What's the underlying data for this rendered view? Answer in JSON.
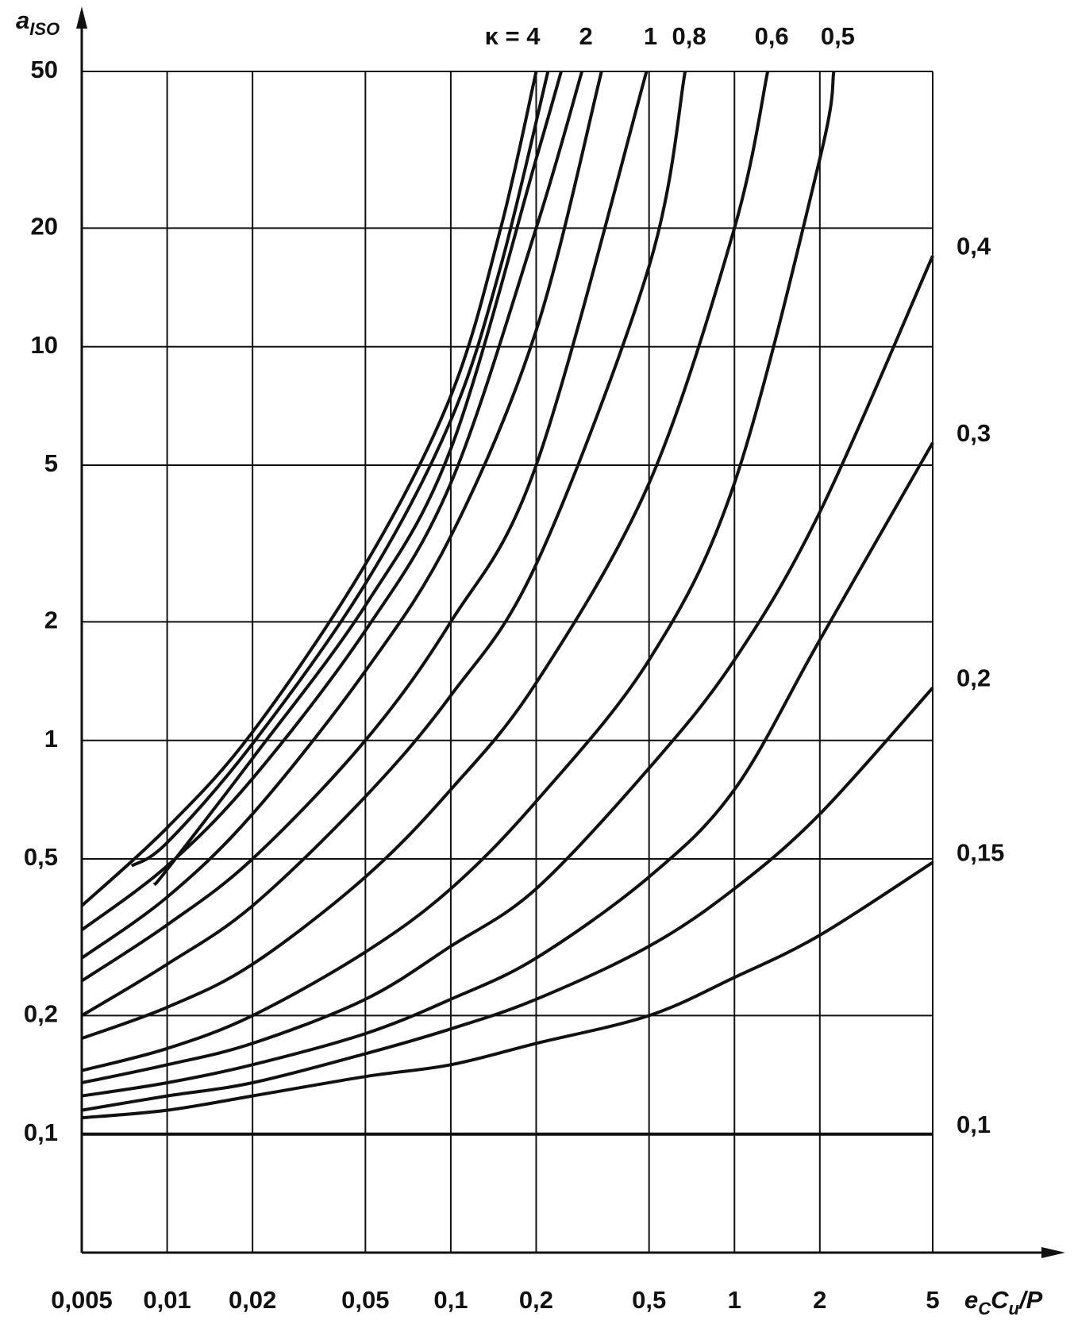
{
  "chart_data": {
    "type": "line",
    "xscale": "log",
    "yscale": "log",
    "grid": true,
    "color": "#111",
    "ylabel": "a",
    "ylabel_sub": "ISO",
    "xlabel_parts": [
      {
        "text": "e"
      },
      {
        "text": "C",
        "sub": true
      },
      {
        "text": "C"
      },
      {
        "text": "u",
        "sub": true
      },
      {
        "text": "/P"
      }
    ],
    "xlim": [
      0.005,
      5
    ],
    "ylim": [
      0.05,
      50
    ],
    "xticks": [
      {
        "value": 0.005,
        "label": "0,005"
      },
      {
        "value": 0.01,
        "label": "0,01"
      },
      {
        "value": 0.02,
        "label": "0,02"
      },
      {
        "value": 0.05,
        "label": "0,05"
      },
      {
        "value": 0.1,
        "label": "0,1"
      },
      {
        "value": 0.2,
        "label": "0,2"
      },
      {
        "value": 0.5,
        "label": "0,5"
      },
      1,
      2,
      5
    ],
    "yticks": [
      {
        "value": 0.1,
        "label": "0,1"
      },
      {
        "value": 0.2,
        "label": "0,2"
      },
      {
        "value": 0.5,
        "label": "0,5"
      },
      1,
      2,
      5,
      10,
      20,
      50
    ],
    "series": [
      {
        "name": "κ = 4",
        "x": [
          0.005,
          0.01,
          0.02,
          0.05,
          0.1,
          0.15,
          0.2
        ],
        "values": [
          0.38,
          0.6,
          1.05,
          2.8,
          7.5,
          20,
          50
        ]
      },
      {
        "x": [
          0.0075,
          0.01,
          0.02,
          0.05,
          0.1,
          0.15,
          0.22
        ],
        "values": [
          0.48,
          0.55,
          0.98,
          2.5,
          6.5,
          16,
          50
        ]
      },
      {
        "x": [
          0.009,
          0.01,
          0.02,
          0.05,
          0.1,
          0.2,
          0.245
        ],
        "values": [
          0.43,
          0.47,
          0.9,
          2.2,
          5.5,
          30,
          50
        ]
      },
      {
        "name": "2",
        "x": [
          0.005,
          0.01,
          0.02,
          0.05,
          0.1,
          0.2,
          0.29
        ],
        "values": [
          0.33,
          0.48,
          0.8,
          1.9,
          4.5,
          20,
          50
        ]
      },
      {
        "x": [
          0.005,
          0.01,
          0.02,
          0.05,
          0.1,
          0.2,
          0.34
        ],
        "values": [
          0.28,
          0.4,
          0.65,
          1.5,
          3.3,
          11,
          50
        ]
      },
      {
        "name": "1",
        "x": [
          0.005,
          0.01,
          0.02,
          0.05,
          0.1,
          0.2,
          0.49
        ],
        "values": [
          0.245,
          0.34,
          0.5,
          1.0,
          2.0,
          5.0,
          50
        ]
      },
      {
        "name": "0,8",
        "x": [
          0.005,
          0.01,
          0.02,
          0.05,
          0.1,
          0.2,
          0.5,
          0.67
        ],
        "values": [
          0.2,
          0.27,
          0.38,
          0.72,
          1.3,
          2.8,
          16,
          50
        ]
      },
      {
        "name": "0,6",
        "x": [
          0.005,
          0.01,
          0.02,
          0.05,
          0.1,
          0.2,
          0.5,
          1,
          1.31
        ],
        "values": [
          0.175,
          0.21,
          0.27,
          0.45,
          0.75,
          1.4,
          4.5,
          20,
          50
        ]
      },
      {
        "name": "0,5",
        "x": [
          0.005,
          0.01,
          0.02,
          0.05,
          0.1,
          0.2,
          0.5,
          1,
          2,
          2.24
        ],
        "values": [
          0.145,
          0.165,
          0.2,
          0.29,
          0.42,
          0.7,
          1.6,
          4.5,
          30,
          50
        ]
      },
      {
        "name": "0,4",
        "x": [
          0.005,
          0.01,
          0.02,
          0.05,
          0.1,
          0.2,
          0.5,
          1,
          2,
          5
        ],
        "values": [
          0.135,
          0.15,
          0.17,
          0.22,
          0.3,
          0.42,
          0.85,
          1.6,
          3.8,
          17
        ]
      },
      {
        "name": "0,3",
        "x": [
          0.005,
          0.01,
          0.02,
          0.05,
          0.1,
          0.2,
          0.5,
          1,
          2,
          5
        ],
        "values": [
          0.125,
          0.135,
          0.15,
          0.18,
          0.22,
          0.28,
          0.45,
          0.75,
          1.8,
          5.7
        ]
      },
      {
        "name": "0,2",
        "x": [
          0.005,
          0.01,
          0.02,
          0.05,
          0.1,
          0.2,
          0.5,
          1,
          2,
          5
        ],
        "values": [
          0.115,
          0.125,
          0.135,
          0.16,
          0.185,
          0.22,
          0.3,
          0.42,
          0.65,
          1.36
        ]
      },
      {
        "name": "0,15",
        "x": [
          0.005,
          0.01,
          0.02,
          0.05,
          0.1,
          0.2,
          0.5,
          1,
          2,
          5
        ],
        "values": [
          0.11,
          0.115,
          0.125,
          0.14,
          0.15,
          0.17,
          0.2,
          0.25,
          0.32,
          0.49
        ]
      },
      {
        "name": "0,1",
        "x": [
          0.005,
          5
        ],
        "values": [
          0.1,
          0.1
        ]
      }
    ]
  }
}
